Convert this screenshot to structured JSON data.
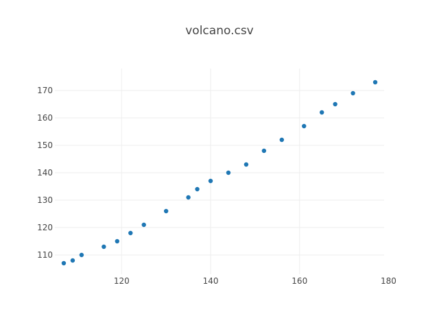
{
  "chart_data": {
    "type": "scatter",
    "title": "volcano.csv",
    "xlabel": "",
    "ylabel": "",
    "xlim": [
      105,
      179
    ],
    "ylim": [
      103,
      178
    ],
    "x_ticks": [
      120,
      140,
      160,
      180
    ],
    "y_ticks": [
      110,
      120,
      130,
      140,
      150,
      160,
      170
    ],
    "grid": true,
    "legend": "none",
    "marker_color": "#1f77b4",
    "series": [
      {
        "points": [
          {
            "x": 107,
            "y": 107
          },
          {
            "x": 109,
            "y": 108
          },
          {
            "x": 111,
            "y": 110
          },
          {
            "x": 116,
            "y": 113
          },
          {
            "x": 119,
            "y": 115
          },
          {
            "x": 122,
            "y": 118
          },
          {
            "x": 125,
            "y": 121
          },
          {
            "x": 130,
            "y": 126
          },
          {
            "x": 135,
            "y": 131
          },
          {
            "x": 137,
            "y": 134
          },
          {
            "x": 140,
            "y": 137
          },
          {
            "x": 144,
            "y": 140
          },
          {
            "x": 148,
            "y": 143
          },
          {
            "x": 152,
            "y": 148
          },
          {
            "x": 156,
            "y": 152
          },
          {
            "x": 161,
            "y": 157
          },
          {
            "x": 165,
            "y": 162
          },
          {
            "x": 168,
            "y": 165
          },
          {
            "x": 172,
            "y": 169
          },
          {
            "x": 177,
            "y": 173
          }
        ]
      }
    ]
  }
}
